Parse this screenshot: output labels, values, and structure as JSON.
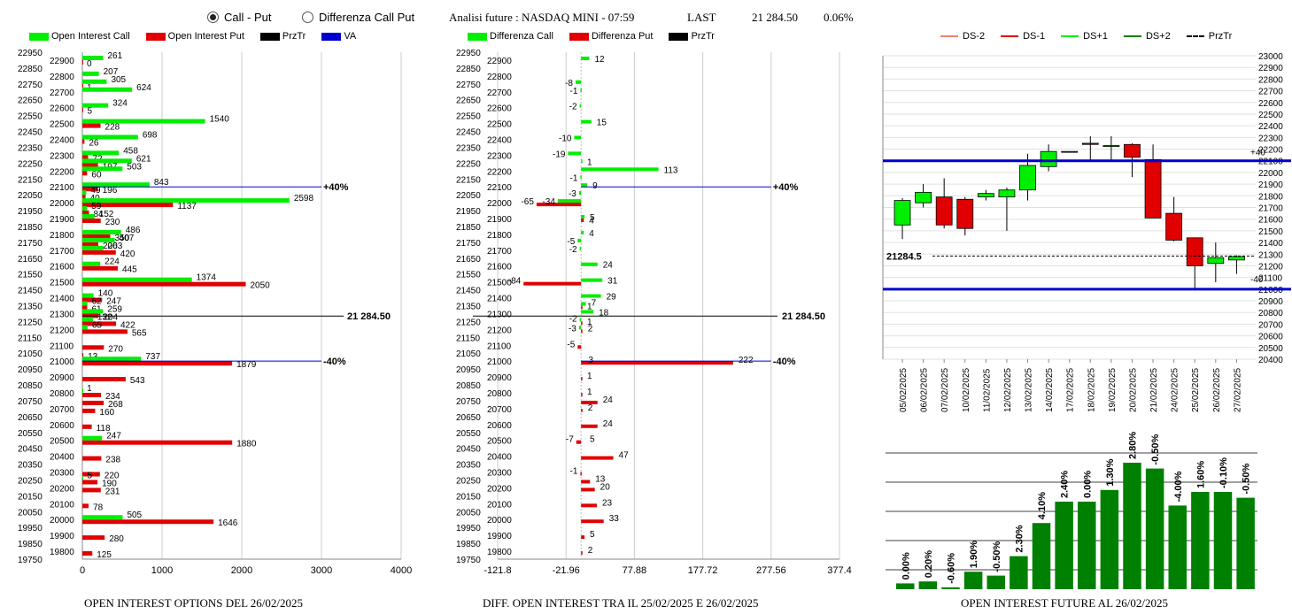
{
  "controls": {
    "radio_call_put": "Call - Put",
    "radio_diff": "Differenza Call Put",
    "info_title": "Analisi future : NASDAQ MINI - 07:59",
    "info_last_label": "LAST",
    "info_last_value": "21 284.50",
    "info_change": "0.06%"
  },
  "colors": {
    "green": "#00ee00",
    "red": "#e00000",
    "blue": "#0000cc",
    "dark_green": "#008000"
  },
  "chart1": {
    "legend": [
      "Open Interest Call",
      "Open Interest Put",
      "PrzTr",
      "VA"
    ],
    "footer": "OPEN INTEREST OPTIONS DEL 26/02/2025",
    "xticks": [
      "0",
      "1000",
      "2000",
      "3000",
      "4000"
    ],
    "strikes_all": [
      "22950",
      "22850",
      "22750",
      "22650",
      "22550",
      "22450",
      "22350",
      "22250",
      "22150",
      "22050",
      "21950",
      "21850",
      "21750",
      "21650",
      "21550",
      "21450",
      "21350",
      "21250",
      "21150",
      "21050",
      "20950",
      "20850",
      "20750",
      "20650",
      "20550",
      "20450",
      "20350",
      "20250",
      "20150",
      "20050",
      "19950",
      "19850",
      "19750"
    ],
    "strikes_inner": [
      "22900",
      "22800",
      "22700",
      "22600",
      "22500",
      "22400",
      "22300",
      "22200",
      "22100",
      "22000",
      "21900",
      "21800",
      "21700",
      "21600",
      "21500",
      "21400",
      "21300",
      "21200",
      "21100",
      "21000",
      "20900",
      "20800",
      "20700",
      "20600",
      "20500",
      "20400",
      "20300",
      "20200",
      "20100",
      "20000",
      "19900",
      "19800"
    ],
    "price_label": "21 284.50",
    "va_high_label": "+40%",
    "va_low_label": "-40%"
  },
  "chart2": {
    "legend": [
      "Differenza Call",
      "Differenza Put",
      "PrzTr"
    ],
    "footer": "DIFF. OPEN INTEREST TRA IL 25/02/2025 E 26/02/2025",
    "xticks": [
      "-121.8",
      "-21.96",
      "77.88",
      "177.72",
      "277.56",
      "377.4"
    ],
    "price_label": "21 284.50",
    "va_high_label": "+40%",
    "va_low_label": "-40%"
  },
  "chart3": {
    "legend": [
      "DS-2",
      "DS-1",
      "DS+1",
      "DS+2",
      "PrzTr"
    ],
    "price_label": "21284.5",
    "upper_label": "+40",
    "lower_label": "-40",
    "yticks": [
      "23000",
      "22900",
      "22800",
      "22700",
      "22600",
      "22500",
      "22400",
      "22300",
      "22200",
      "22100",
      "22000",
      "21900",
      "21800",
      "21700",
      "21600",
      "21500",
      "21400",
      "21300",
      "21200",
      "21100",
      "21000",
      "20900",
      "20800",
      "20700",
      "20600",
      "20500",
      "20400"
    ]
  },
  "chart4": {
    "footer": "OPEN INTEREST FUTURE AL 26/02/2025"
  },
  "chart_data": [
    {
      "type": "bar",
      "orientation": "horizontal",
      "title": "OPEN INTEREST OPTIONS DEL 26/02/2025",
      "xlim": [
        0,
        4000
      ],
      "price": 21284.5,
      "va_high": 22100,
      "va_low": 21000,
      "call": [
        [
          22900,
          261
        ],
        [
          22800,
          207
        ],
        [
          22750,
          305
        ],
        [
          22700,
          624
        ],
        [
          22600,
          324
        ],
        [
          22500,
          1540
        ],
        [
          22400,
          698
        ],
        [
          22300,
          458
        ],
        [
          22250,
          621
        ],
        [
          22200,
          503
        ],
        [
          22100,
          843
        ],
        [
          22050,
          49
        ],
        [
          22000,
          2598
        ],
        [
          21950,
          59
        ],
        [
          21900,
          152
        ],
        [
          21800,
          486
        ],
        [
          21750,
          407
        ],
        [
          21700,
          263
        ],
        [
          21600,
          224
        ],
        [
          21500,
          1374
        ],
        [
          21400,
          140
        ],
        [
          21350,
          62
        ],
        [
          21300,
          259
        ],
        [
          21250,
          132
        ],
        [
          21200,
          65
        ],
        [
          21000,
          737
        ],
        [
          20800,
          1
        ],
        [
          20500,
          247
        ],
        [
          20250,
          5
        ],
        [
          20000,
          505
        ]
      ],
      "put": [
        [
          22900,
          0
        ],
        [
          22750,
          1
        ],
        [
          22600,
          5
        ],
        [
          22500,
          228
        ],
        [
          22400,
          26
        ],
        [
          22300,
          72
        ],
        [
          22250,
          197
        ],
        [
          22200,
          60
        ],
        [
          22100,
          196
        ],
        [
          22050,
          40
        ],
        [
          22000,
          1137
        ],
        [
          21950,
          84
        ],
        [
          21900,
          230
        ],
        [
          21800,
          350
        ],
        [
          21750,
          200
        ],
        [
          21700,
          420
        ],
        [
          21600,
          445
        ],
        [
          21500,
          2050
        ],
        [
          21400,
          247
        ],
        [
          21350,
          61
        ],
        [
          21300,
          204
        ],
        [
          21250,
          422
        ],
        [
          21200,
          565
        ],
        [
          21100,
          270
        ],
        [
          21050,
          13
        ],
        [
          21000,
          1879
        ],
        [
          20900,
          543
        ],
        [
          20800,
          234
        ],
        [
          20750,
          268
        ],
        [
          20700,
          160
        ],
        [
          20600,
          118
        ],
        [
          20500,
          1880
        ],
        [
          20400,
          238
        ],
        [
          20300,
          220
        ],
        [
          20250,
          190
        ],
        [
          20200,
          231
        ],
        [
          20100,
          78
        ],
        [
          20000,
          1646
        ],
        [
          19900,
          280
        ],
        [
          19800,
          125
        ]
      ]
    },
    {
      "type": "bar",
      "orientation": "horizontal",
      "title": "DIFF. OPEN INTEREST TRA IL 25/02/2025 E 26/02/2025",
      "xlim": [
        -121.8,
        377.4
      ],
      "call": [
        [
          22900,
          12
        ],
        [
          22750,
          -8
        ],
        [
          22700,
          -1
        ],
        [
          22600,
          -2
        ],
        [
          22500,
          15
        ],
        [
          22400,
          -10
        ],
        [
          22300,
          -19
        ],
        [
          22250,
          1
        ],
        [
          22200,
          113
        ],
        [
          22150,
          -1
        ],
        [
          22100,
          9
        ],
        [
          22050,
          -3
        ],
        [
          22000,
          -34
        ],
        [
          21900,
          5
        ],
        [
          21800,
          4
        ],
        [
          21750,
          -5
        ],
        [
          21700,
          -2
        ],
        [
          21600,
          24
        ],
        [
          21500,
          31
        ],
        [
          21400,
          29
        ],
        [
          21350,
          7
        ],
        [
          21300,
          18
        ],
        [
          21250,
          -2
        ],
        [
          21200,
          -3
        ]
      ],
      "put": [
        [
          22000,
          -65
        ],
        [
          21900,
          4
        ],
        [
          21500,
          -84
        ],
        [
          21350,
          1
        ],
        [
          21250,
          1
        ],
        [
          21200,
          2
        ],
        [
          21100,
          -5
        ],
        [
          21000,
          222
        ],
        [
          20900,
          1
        ],
        [
          20800,
          1
        ],
        [
          20750,
          24
        ],
        [
          20700,
          2
        ],
        [
          20600,
          24
        ],
        [
          20500,
          -7
        ],
        [
          20400,
          47
        ],
        [
          20300,
          -1
        ],
        [
          20250,
          13
        ],
        [
          20200,
          20
        ],
        [
          20100,
          23
        ],
        [
          20000,
          33
        ],
        [
          19900,
          5
        ],
        [
          19800,
          2
        ]
      ],
      "labels": [
        [
          22900,
          "12"
        ],
        [
          22750,
          "-8"
        ],
        [
          22700,
          "-1"
        ],
        [
          22600,
          "-2"
        ],
        [
          22500,
          "15"
        ],
        [
          22400,
          "-10"
        ],
        [
          22300,
          "-19"
        ],
        [
          22250,
          "1"
        ],
        [
          22200,
          "113"
        ],
        [
          22150,
          "-1"
        ],
        [
          22100,
          "9"
        ],
        [
          22050,
          "-3"
        ],
        [
          22000,
          "-34"
        ],
        [
          22000,
          "-65"
        ],
        [
          21900,
          "5"
        ],
        [
          21880,
          "4"
        ],
        [
          21800,
          "4"
        ],
        [
          21750,
          "-5"
        ],
        [
          21700,
          "-2"
        ],
        [
          21600,
          "24"
        ],
        [
          21500,
          "31"
        ],
        [
          21500,
          "-84"
        ],
        [
          21400,
          "29"
        ],
        [
          21360,
          "7"
        ],
        [
          21340,
          "1"
        ],
        [
          21300,
          "18"
        ],
        [
          21260,
          "-2"
        ],
        [
          21240,
          "1"
        ],
        [
          21200,
          "-3"
        ],
        [
          21200,
          "2"
        ],
        [
          21100,
          "-5"
        ],
        [
          21000,
          "3"
        ],
        [
          21000,
          "222"
        ],
        [
          20900,
          "1"
        ],
        [
          20800,
          "1"
        ],
        [
          20750,
          "24"
        ],
        [
          20700,
          "2"
        ],
        [
          20600,
          "24"
        ],
        [
          20500,
          "-7"
        ],
        [
          20500,
          "5"
        ],
        [
          20400,
          "47"
        ],
        [
          20300,
          "-1"
        ],
        [
          20250,
          "13"
        ],
        [
          20200,
          "20"
        ],
        [
          20100,
          "23"
        ],
        [
          20000,
          "33"
        ],
        [
          19900,
          "5"
        ],
        [
          19800,
          "2"
        ]
      ]
    },
    {
      "type": "candlestick",
      "ylim": [
        20400,
        23000
      ],
      "dates": [
        "05/02/2025",
        "06/02/2025",
        "07/02/2025",
        "10/02/2025",
        "11/02/2025",
        "12/02/2025",
        "13/02/2025",
        "14/02/2025",
        "17/02/2025",
        "18/02/2025",
        "19/02/2025",
        "20/02/2025",
        "21/02/2025",
        "24/02/2025",
        "25/02/2025",
        "26/02/2025",
        "27/02/2025"
      ],
      "ohlc": [
        [
          21550,
          21780,
          21430,
          21760
        ],
        [
          21740,
          21900,
          21700,
          21830
        ],
        [
          21790,
          21950,
          21520,
          21550
        ],
        [
          21770,
          21790,
          21460,
          21520
        ],
        [
          21790,
          21850,
          21760,
          21820
        ],
        [
          21790,
          21870,
          21500,
          21850
        ],
        [
          21850,
          22160,
          21760,
          22060
        ],
        [
          22050,
          22240,
          22010,
          22180
        ],
        [
          22180,
          22180,
          22180,
          22180
        ],
        [
          22250,
          22310,
          22100,
          22240
        ],
        [
          22230,
          22310,
          22100,
          22230
        ],
        [
          22240,
          22250,
          21960,
          22130
        ],
        [
          22110,
          22240,
          21610,
          21610
        ],
        [
          21650,
          21790,
          21410,
          21420
        ],
        [
          21440,
          21440,
          21010,
          21200
        ],
        [
          21220,
          21400,
          21060,
          21270
        ],
        [
          21250,
          21290,
          21130,
          21280
        ]
      ],
      "price": 21284.5,
      "upper_band": 22100,
      "lower_band": 21000
    },
    {
      "type": "bar",
      "title": "OPEN INTEREST FUTURE AL 26/02/2025",
      "labels": [
        "0.00%",
        "0.20%",
        "-0.60%",
        "1.90%",
        "-0.50%",
        "2.30%",
        "4.10%",
        "2.40%",
        "0.00%",
        "1.30%",
        "2.80%",
        "-0.50%",
        "-4.00%",
        "1.60%",
        "-0.10%",
        "-0.50%"
      ],
      "values": [
        3,
        4,
        1,
        9,
        7,
        17,
        34,
        45,
        45,
        51,
        65,
        62,
        43,
        50,
        50,
        47
      ]
    }
  ]
}
